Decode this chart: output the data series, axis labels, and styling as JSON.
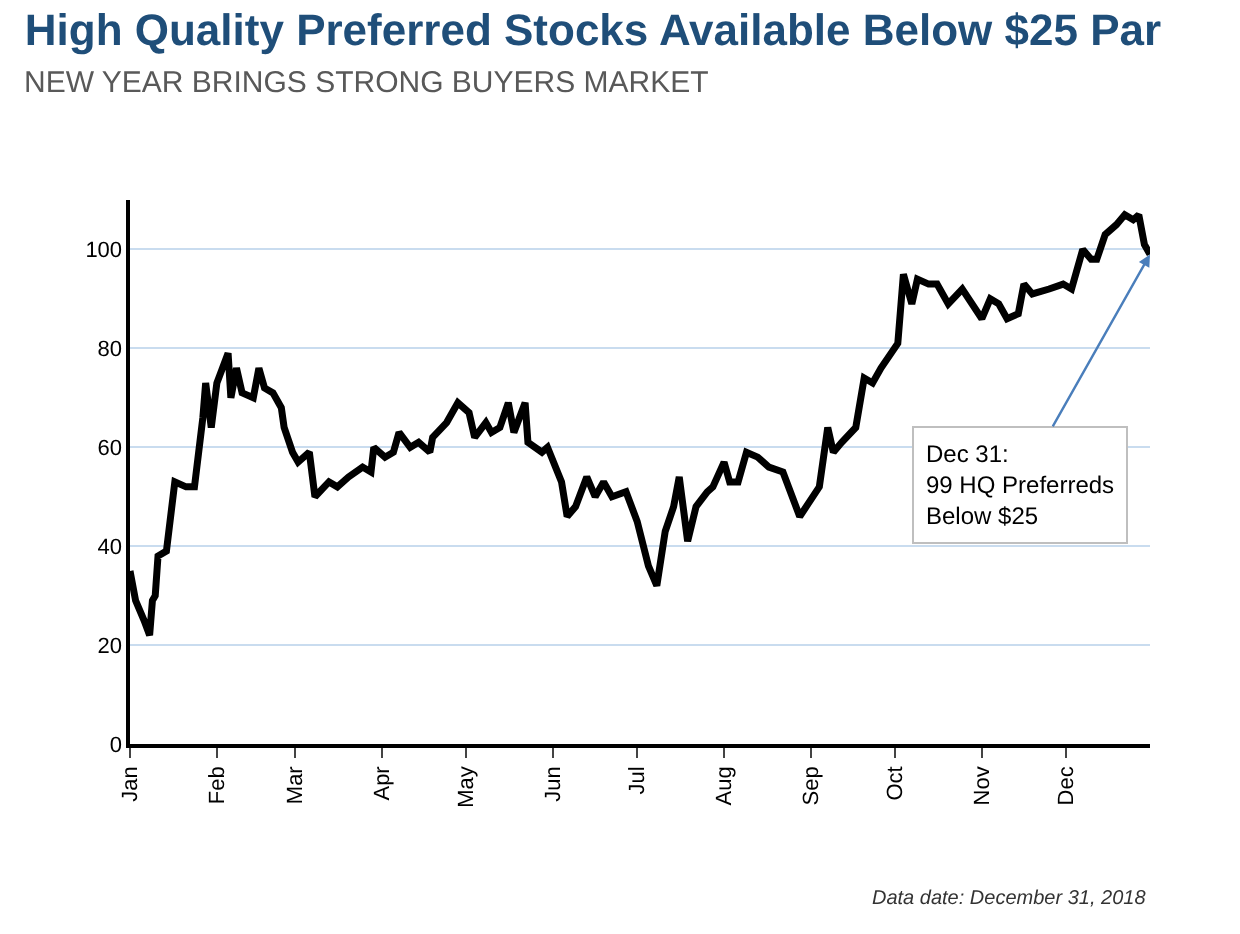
{
  "chart_data": {
    "type": "line",
    "title": "High Quality Preferred Stocks Available Below $25 Par",
    "subtitle": "NEW YEAR BRINGS STRONG BUYERS MARKET",
    "x": [
      "2018-01-01",
      "2018-01-03",
      "2018-01-06",
      "2018-01-08",
      "2018-01-09",
      "2018-01-10",
      "2018-01-11",
      "2018-01-14",
      "2018-01-17",
      "2018-01-21",
      "2018-01-24",
      "2018-01-27",
      "2018-01-28",
      "2018-01-30",
      "2018-02-01",
      "2018-02-05",
      "2018-02-06",
      "2018-02-08",
      "2018-02-10",
      "2018-02-14",
      "2018-02-16",
      "2018-02-18",
      "2018-02-21",
      "2018-02-24",
      "2018-02-25",
      "2018-02-28",
      "2018-03-02",
      "2018-03-06",
      "2018-03-08",
      "2018-03-13",
      "2018-03-16",
      "2018-03-20",
      "2018-03-25",
      "2018-03-28",
      "2018-03-29",
      "2018-04-02",
      "2018-04-05",
      "2018-04-07",
      "2018-04-11",
      "2018-04-14",
      "2018-04-18",
      "2018-04-19",
      "2018-04-24",
      "2018-04-28",
      "2018-05-02",
      "2018-05-04",
      "2018-05-08",
      "2018-05-10",
      "2018-05-13",
      "2018-05-16",
      "2018-05-18",
      "2018-05-22",
      "2018-05-23",
      "2018-05-28",
      "2018-05-30",
      "2018-06-04",
      "2018-06-06",
      "2018-06-09",
      "2018-06-13",
      "2018-06-16",
      "2018-06-19",
      "2018-06-22",
      "2018-06-27",
      "2018-07-01",
      "2018-07-05",
      "2018-07-08",
      "2018-07-11",
      "2018-07-14",
      "2018-07-16",
      "2018-07-19",
      "2018-07-22",
      "2018-07-26",
      "2018-07-28",
      "2018-08-01",
      "2018-08-03",
      "2018-08-06",
      "2018-08-09",
      "2018-08-13",
      "2018-08-17",
      "2018-08-22",
      "2018-08-28",
      "2018-09-04",
      "2018-09-07",
      "2018-09-09",
      "2018-09-12",
      "2018-09-17",
      "2018-09-20",
      "2018-09-23",
      "2018-09-26",
      "2018-10-02",
      "2018-10-04",
      "2018-10-07",
      "2018-10-09",
      "2018-10-13",
      "2018-10-16",
      "2018-10-20",
      "2018-10-25",
      "2018-11-01",
      "2018-11-04",
      "2018-11-07",
      "2018-11-10",
      "2018-11-14",
      "2018-11-16",
      "2018-11-19",
      "2018-11-25",
      "2018-11-30",
      "2018-12-03",
      "2018-12-07",
      "2018-12-10",
      "2018-12-12",
      "2018-12-15",
      "2018-12-19",
      "2018-12-22",
      "2018-12-25",
      "2018-12-27",
      "2018-12-29",
      "2018-12-31"
    ],
    "series": [
      {
        "color": "#000000",
        "values": [
          35,
          29,
          25,
          22,
          29,
          30,
          38,
          39,
          53,
          52,
          52,
          66,
          73,
          64,
          73,
          79,
          70,
          76,
          71,
          70,
          76,
          72,
          71,
          68,
          64,
          59,
          57,
          59,
          50,
          53,
          52,
          54,
          56,
          55,
          60,
          58,
          59,
          63,
          60,
          61,
          59,
          62,
          65,
          69,
          67,
          62,
          65,
          63,
          64,
          69,
          63,
          69,
          61,
          59,
          60,
          53,
          46,
          48,
          54,
          50,
          53,
          50,
          51,
          45,
          36,
          32,
          43,
          48,
          54,
          41,
          48,
          51,
          52,
          57,
          53,
          53,
          59,
          58,
          56,
          55,
          46,
          52,
          64,
          59,
          61,
          64,
          74,
          73,
          76,
          81,
          95,
          89,
          94,
          93,
          93,
          89,
          92,
          86,
          90,
          89,
          86,
          87,
          93,
          91,
          92,
          93,
          92,
          100,
          98,
          98,
          103,
          105,
          107,
          106,
          107,
          101,
          99
        ]
      }
    ],
    "xlim": [
      "2018-01-01",
      "2018-12-31"
    ],
    "xticks": [
      {
        "value": "2018-01-01",
        "label": "Jan"
      },
      {
        "value": "2018-02-01",
        "label": "Feb"
      },
      {
        "value": "2018-03-01",
        "label": "Mar"
      },
      {
        "value": "2018-04-01",
        "label": "Apr"
      },
      {
        "value": "2018-05-01",
        "label": "May"
      },
      {
        "value": "2018-06-01",
        "label": "Jun"
      },
      {
        "value": "2018-07-01",
        "label": "Jul"
      },
      {
        "value": "2018-08-01",
        "label": "Aug"
      },
      {
        "value": "2018-09-01",
        "label": "Sep"
      },
      {
        "value": "2018-10-01",
        "label": "Oct"
      },
      {
        "value": "2018-11-01",
        "label": "Nov"
      },
      {
        "value": "2018-12-01",
        "label": "Dec"
      }
    ],
    "ylim": [
      0,
      110
    ],
    "yticks": [
      0,
      20,
      40,
      60,
      80,
      100
    ],
    "grid": "y",
    "marker": "none",
    "line_style": "solid",
    "annotations": [
      {
        "text": "Dec 31:\n99 HQ Preferreds\nBelow $25",
        "x": "2018-12-31",
        "y": 99
      },
      "Data date: December 31, 2018"
    ]
  }
}
